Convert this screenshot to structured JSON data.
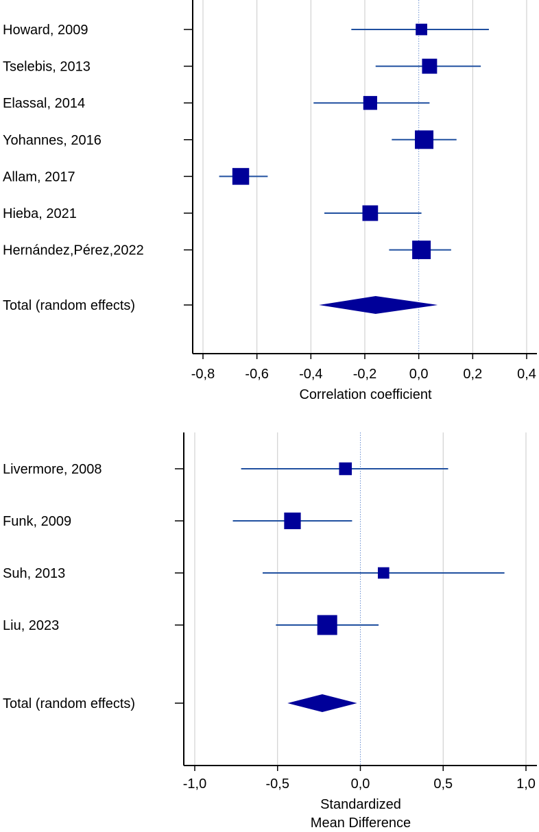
{
  "chart_data": [
    {
      "type": "forest",
      "xlabel": "Correlation coefficient",
      "xlim": [
        -0.8,
        0.4
      ],
      "ticks": [
        -0.8,
        -0.6,
        -0.4,
        -0.2,
        0.0,
        0.2,
        0.4
      ],
      "tick_labels": [
        "-0,8",
        "-0,6",
        "-0,4",
        "-0,2",
        "0,0",
        "0,2",
        "0,4"
      ],
      "grid": true,
      "colors": {
        "marker": "#000099",
        "ci_line": "#1f4f9f",
        "grid": "#c8c8c8",
        "axis": "#000000"
      },
      "studies": [
        {
          "label": "Howard, 2009",
          "estimate": 0.01,
          "ci": [
            -0.25,
            0.26
          ],
          "weight": 0.4
        },
        {
          "label": "Tselebis, 2013",
          "estimate": 0.04,
          "ci": [
            -0.16,
            0.23
          ],
          "weight": 0.7
        },
        {
          "label": "Elassal, 2014",
          "estimate": -0.18,
          "ci": [
            -0.39,
            0.04
          ],
          "weight": 0.6
        },
        {
          "label": "Yohannes, 2016",
          "estimate": 0.02,
          "ci": [
            -0.1,
            0.14
          ],
          "weight": 1.0
        },
        {
          "label": "Allam, 2017",
          "estimate": -0.66,
          "ci": [
            -0.74,
            -0.56
          ],
          "weight": 0.85
        },
        {
          "label": "Hieba, 2021",
          "estimate": -0.18,
          "ci": [
            -0.35,
            0.01
          ],
          "weight": 0.75
        },
        {
          "label": "Hernández,Pérez,2022",
          "estimate": 0.01,
          "ci": [
            -0.11,
            0.12
          ],
          "weight": 1.0
        }
      ],
      "total": {
        "label": "Total (random effects)",
        "estimate": -0.16,
        "ci": [
          -0.37,
          0.07
        ]
      }
    },
    {
      "type": "forest",
      "xlabel_lines": [
        "Standardized",
        "Mean Difference"
      ],
      "xlim": [
        -1.0,
        1.0
      ],
      "ticks": [
        -1.0,
        -0.5,
        0.0,
        0.5,
        1.0
      ],
      "tick_labels": [
        "-1,0",
        "-0,5",
        "0,0",
        "0,5",
        "1,0"
      ],
      "grid": true,
      "colors": {
        "marker": "#000099",
        "ci_line": "#1f4f9f",
        "grid": "#c8c8c8",
        "axis": "#000000"
      },
      "studies": [
        {
          "label": "Livermore, 2008",
          "estimate": -0.09,
          "ci": [
            -0.72,
            0.53
          ],
          "weight": 0.45
        },
        {
          "label": "Funk, 2009",
          "estimate": -0.41,
          "ci": [
            -0.77,
            -0.05
          ],
          "weight": 0.75
        },
        {
          "label": "Suh, 2013",
          "estimate": 0.14,
          "ci": [
            -0.59,
            0.87
          ],
          "weight": 0.35
        },
        {
          "label": "Liu, 2023",
          "estimate": -0.2,
          "ci": [
            -0.51,
            0.11
          ],
          "weight": 1.0
        }
      ],
      "total": {
        "label": "Total (random effects)",
        "estimate": -0.23,
        "ci": [
          -0.44,
          -0.02
        ]
      }
    }
  ]
}
